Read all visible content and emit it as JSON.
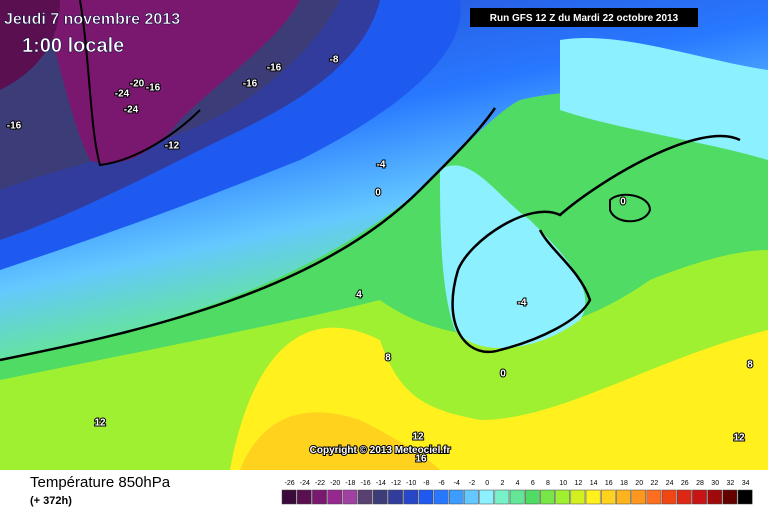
{
  "header": {
    "date": "Jeudi 7 novembre 2013",
    "time": "1:00 locale",
    "run": "Run GFS 12 Z du Mardi 22 octobre 2013"
  },
  "map": {
    "copyright": "Copyright © 2013 Meteociel.fr",
    "contour_labels": [
      "-16",
      "-8",
      "-20",
      "-16",
      "-24",
      "-16",
      "-24",
      "-16",
      "-12",
      "-4",
      "0",
      "0",
      "4",
      "-4",
      "8",
      "0",
      "8",
      "12",
      "12",
      "16",
      "12"
    ]
  },
  "legend": {
    "title": "Température 850hPa",
    "lead": "(+ 372h)",
    "values": [
      -26,
      -24,
      -22,
      -20,
      -18,
      -16,
      -14,
      -12,
      -10,
      -8,
      -6,
      -4,
      -2,
      0,
      2,
      4,
      6,
      8,
      10,
      12,
      14,
      16,
      18,
      20,
      22,
      24,
      26,
      28,
      30,
      32,
      34
    ],
    "colors": [
      "#3a0a3a",
      "#5a1050",
      "#7a1870",
      "#962890",
      "#a040a0",
      "#584070",
      "#3c3c78",
      "#323c9c",
      "#2846c8",
      "#1e5af0",
      "#2878ff",
      "#3c9cff",
      "#64c8ff",
      "#8cf0ff",
      "#78f0c8",
      "#64e696",
      "#50dc64",
      "#78e646",
      "#a0f032",
      "#d2f01e",
      "#fff01e",
      "#ffd21e",
      "#ffb41e",
      "#ff961e",
      "#ff6e1e",
      "#f04614",
      "#dc2814",
      "#c81414",
      "#a00a0a",
      "#640000",
      "#000000"
    ]
  }
}
